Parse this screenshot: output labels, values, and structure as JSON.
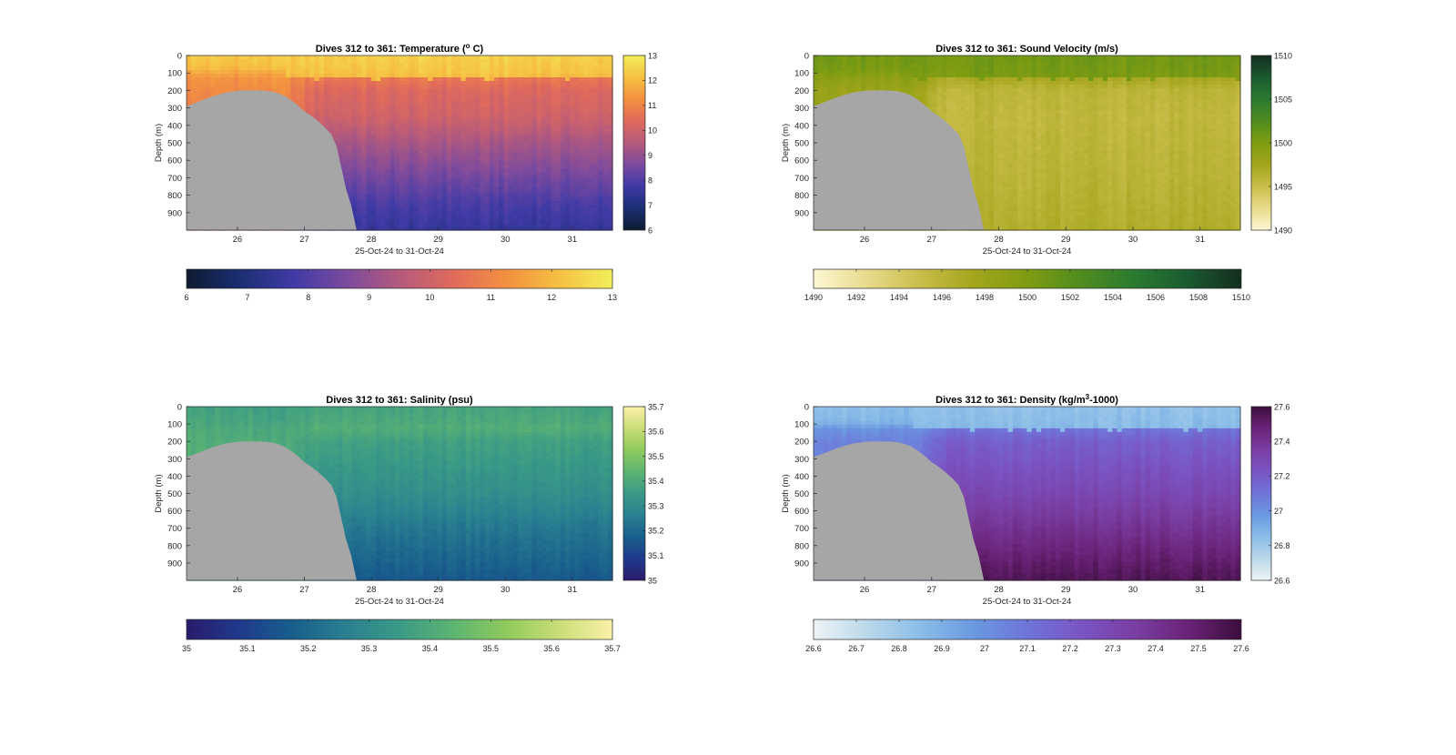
{
  "figure": {
    "ylabel": "Depth (m)",
    "xlabel": "25-Oct-24 to 31-Oct-24"
  },
  "chart_data": [
    {
      "type": "heatmap",
      "title": "Dives 312 to 361: Temperature (",
      "title_sup": "o",
      "title_tail": " C)",
      "xlabel": "25-Oct-24 to 31-Oct-24",
      "ylabel": "Depth (m)",
      "x_ticks": [
        "26",
        "27",
        "28",
        "29",
        "30",
        "31"
      ],
      "x_tick_values": [
        26,
        27,
        28,
        29,
        30,
        31
      ],
      "xlim": [
        25.24,
        31.6
      ],
      "y_ticks": [
        "0",
        "100",
        "200",
        "300",
        "400",
        "500",
        "600",
        "700",
        "800",
        "900"
      ],
      "y_tick_values": [
        0,
        100,
        200,
        300,
        400,
        500,
        600,
        700,
        800,
        900
      ],
      "ylim": [
        0,
        1000
      ],
      "y_reversed": true,
      "clim": [
        6,
        13
      ],
      "colorbar_ticks": [
        "6",
        "7",
        "8",
        "9",
        "10",
        "11",
        "12",
        "13"
      ],
      "colorbar_tick_values": [
        6,
        7,
        8,
        9,
        10,
        11,
        12,
        13
      ],
      "colormap": [
        "#0d1a30",
        "#1b2e73",
        "#3f3aa6",
        "#7b4a9e",
        "#b55a7c",
        "#e06a5c",
        "#f39040",
        "#f6c043",
        "#f2f05a"
      ],
      "profile_depths": [
        0,
        50,
        100,
        130,
        200,
        350,
        500,
        700,
        850,
        1000
      ],
      "profile_early": [
        12.3,
        12.1,
        11.7,
        11.3,
        11.1,
        10.9,
        10.6,
        10.2,
        9.8,
        9.5
      ],
      "profile_late": [
        12.4,
        12.2,
        11.8,
        10.7,
        10.3,
        10.0,
        9.3,
        8.5,
        7.9,
        7.5
      ]
    },
    {
      "type": "heatmap",
      "title": "Dives 312 to 361: Sound Velocity (m/s)",
      "title_sup": "",
      "title_tail": "",
      "xlabel": "25-Oct-24 to 31-Oct-24",
      "ylabel": "Depth (m)",
      "x_ticks": [
        "26",
        "27",
        "28",
        "29",
        "30",
        "31"
      ],
      "x_tick_values": [
        26,
        27,
        28,
        29,
        30,
        31
      ],
      "xlim": [
        25.24,
        31.6
      ],
      "y_ticks": [
        "0",
        "100",
        "200",
        "300",
        "400",
        "500",
        "600",
        "700",
        "800",
        "900"
      ],
      "y_tick_values": [
        0,
        100,
        200,
        300,
        400,
        500,
        600,
        700,
        800,
        900
      ],
      "ylim": [
        0,
        1000
      ],
      "y_reversed": true,
      "clim": [
        1490,
        1510
      ],
      "colorbar_ticks": [
        "1490",
        "1495",
        "1500",
        "1505",
        "1510"
      ],
      "colorbar_tick_values": [
        1490,
        1495,
        1500,
        1505,
        1510
      ],
      "bottom_colorbar_ticks": [
        "1490",
        "1492",
        "1494",
        "1496",
        "1498",
        "1500",
        "1502",
        "1504",
        "1506",
        "1508",
        "1510"
      ],
      "bottom_colorbar_tick_values": [
        1490,
        1492,
        1494,
        1496,
        1498,
        1500,
        1502,
        1504,
        1506,
        1508,
        1510
      ],
      "colormap": [
        "#fdf7d3",
        "#e8db8c",
        "#c9bd4a",
        "#a3a51c",
        "#7f9c12",
        "#4f8c1f",
        "#2b7a30",
        "#1a5a30",
        "#142e1e"
      ],
      "profile_depths": [
        0,
        50,
        100,
        130,
        200,
        350,
        500,
        700,
        850,
        1000
      ],
      "profile_early": [
        1500.6,
        1500.3,
        1499.8,
        1499.0,
        1498.1,
        1497.9,
        1498.0,
        1498.1,
        1498.2,
        1498.3
      ],
      "profile_late": [
        1500.7,
        1500.4,
        1499.9,
        1497.2,
        1495.9,
        1495.6,
        1495.8,
        1496.0,
        1496.3,
        1496.6
      ]
    },
    {
      "type": "heatmap",
      "title": "Dives 312 to 361: Salinity (psu)",
      "title_sup": "",
      "title_tail": "",
      "xlabel": "25-Oct-24 to 31-Oct-24",
      "ylabel": "Depth (m)",
      "x_ticks": [
        "26",
        "27",
        "28",
        "29",
        "30",
        "31"
      ],
      "x_tick_values": [
        26,
        27,
        28,
        29,
        30,
        31
      ],
      "xlim": [
        25.24,
        31.6
      ],
      "y_ticks": [
        "0",
        "100",
        "200",
        "300",
        "400",
        "500",
        "600",
        "700",
        "800",
        "900"
      ],
      "y_tick_values": [
        0,
        100,
        200,
        300,
        400,
        500,
        600,
        700,
        800,
        900
      ],
      "ylim": [
        0,
        1000
      ],
      "y_reversed": true,
      "clim": [
        35,
        35.7
      ],
      "colorbar_ticks": [
        "35",
        "35.1",
        "35.2",
        "35.3",
        "35.4",
        "35.5",
        "35.6",
        "35.7"
      ],
      "colorbar_tick_values": [
        35,
        35.1,
        35.2,
        35.3,
        35.4,
        35.5,
        35.6,
        35.7
      ],
      "colormap": [
        "#2a1a6b",
        "#1f3a8c",
        "#185f8c",
        "#2a8090",
        "#3b9a86",
        "#5cb472",
        "#8fca5c",
        "#cadd78",
        "#fbf1a8"
      ],
      "profile_depths": [
        0,
        50,
        100,
        130,
        200,
        350,
        500,
        700,
        850,
        1000
      ],
      "profile_early": [
        35.37,
        35.38,
        35.39,
        35.4,
        35.41,
        35.41,
        35.4,
        35.38,
        35.37,
        35.36
      ],
      "profile_late": [
        35.38,
        35.4,
        35.44,
        35.41,
        35.37,
        35.34,
        35.31,
        35.24,
        35.2,
        35.16
      ]
    },
    {
      "type": "heatmap",
      "title": "Dives 312 to 361: Density (kg/m",
      "title_sup": "3",
      "title_tail": "-1000)",
      "xlabel": "25-Oct-24 to 31-Oct-24",
      "ylabel": "Depth (m)",
      "x_ticks": [
        "26",
        "27",
        "28",
        "29",
        "30",
        "31"
      ],
      "x_tick_values": [
        26,
        27,
        28,
        29,
        30,
        31
      ],
      "xlim": [
        25.24,
        31.6
      ],
      "y_ticks": [
        "0",
        "100",
        "200",
        "300",
        "400",
        "500",
        "600",
        "700",
        "800",
        "900"
      ],
      "y_tick_values": [
        0,
        100,
        200,
        300,
        400,
        500,
        600,
        700,
        800,
        900
      ],
      "ylim": [
        0,
        1000
      ],
      "y_reversed": true,
      "clim": [
        26.6,
        27.6
      ],
      "colorbar_ticks": [
        "26.6",
        "26.8",
        "27",
        "27.2",
        "27.4",
        "27.6"
      ],
      "colorbar_tick_values": [
        26.6,
        26.8,
        27,
        27.2,
        27.4,
        27.6
      ],
      "bottom_colorbar_ticks": [
        "26.6",
        "26.7",
        "26.8",
        "26.9",
        "27",
        "27.1",
        "27.2",
        "27.3",
        "27.4",
        "27.5",
        "27.6"
      ],
      "bottom_colorbar_tick_values": [
        26.6,
        26.7,
        26.8,
        26.9,
        27,
        27.1,
        27.2,
        27.3,
        27.4,
        27.5,
        27.6
      ],
      "colormap": [
        "#eef4f6",
        "#bad8ea",
        "#8bbde8",
        "#6a99e0",
        "#6f74d8",
        "#7a55c4",
        "#7a3ea3",
        "#6a2378",
        "#3d0d3d"
      ],
      "profile_depths": [
        0,
        50,
        100,
        130,
        200,
        350,
        500,
        700,
        850,
        1000
      ],
      "profile_early": [
        26.85,
        26.86,
        26.9,
        27.0,
        27.05,
        27.08,
        27.1,
        27.14,
        27.18,
        27.22
      ],
      "profile_late": [
        26.83,
        26.85,
        26.88,
        27.1,
        27.18,
        27.24,
        27.3,
        27.4,
        27.48,
        27.55
      ]
    }
  ],
  "seafloor_depth_m": [
    {
      "day": 25.24,
      "depth": 290
    },
    {
      "day": 25.35,
      "depth": 275
    },
    {
      "day": 25.45,
      "depth": 260
    },
    {
      "day": 25.55,
      "depth": 245
    },
    {
      "day": 25.65,
      "depth": 232
    },
    {
      "day": 25.75,
      "depth": 220
    },
    {
      "day": 25.85,
      "depth": 210
    },
    {
      "day": 25.95,
      "depth": 205
    },
    {
      "day": 26.05,
      "depth": 200
    },
    {
      "day": 26.2,
      "depth": 200
    },
    {
      "day": 26.35,
      "depth": 200
    },
    {
      "day": 26.5,
      "depth": 205
    },
    {
      "day": 26.6,
      "depth": 215
    },
    {
      "day": 26.7,
      "depth": 230
    },
    {
      "day": 26.8,
      "depth": 255
    },
    {
      "day": 26.9,
      "depth": 285
    },
    {
      "day": 27.0,
      "depth": 320
    },
    {
      "day": 27.1,
      "depth": 345
    },
    {
      "day": 27.2,
      "depth": 375
    },
    {
      "day": 27.3,
      "depth": 410
    },
    {
      "day": 27.4,
      "depth": 450
    },
    {
      "day": 27.48,
      "depth": 520
    },
    {
      "day": 27.55,
      "depth": 640
    },
    {
      "day": 27.62,
      "depth": 760
    },
    {
      "day": 27.7,
      "depth": 860
    },
    {
      "day": 27.78,
      "depth": 1000
    }
  ]
}
